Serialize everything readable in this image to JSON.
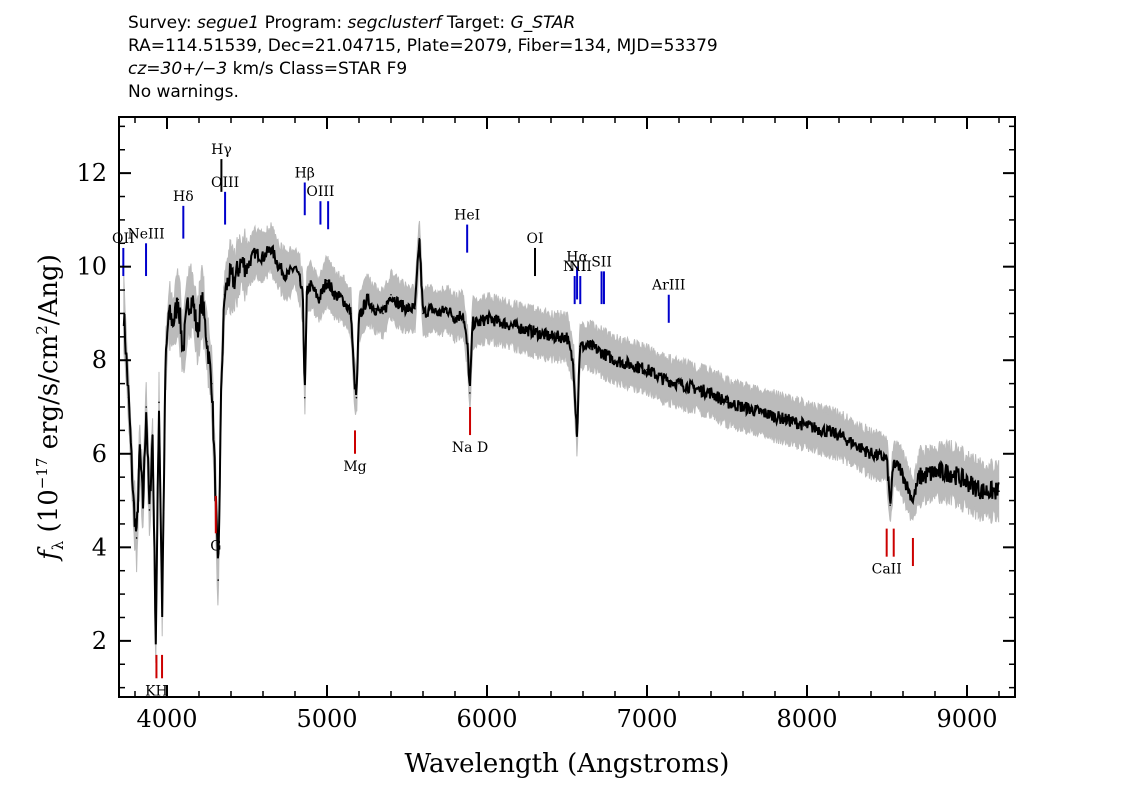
{
  "header": {
    "line1": {
      "survey_label": "Survey:",
      "survey": "segue1",
      "program_label": "Program:",
      "program": "segclusterf",
      "target_label": "Target:",
      "target": "G_STAR"
    },
    "line2": "RA=114.51539, Dec=21.04715, Plate=2079, Fiber=134, MJD=53379",
    "line3": {
      "cz": "cz=30+/−3",
      "rest": "km/s Class=STAR F9"
    },
    "line4": "No warnings."
  },
  "chart_data": {
    "type": "line",
    "xlabel": "Wavelength (Angstroms)",
    "ylabel": "fλ (10⁻¹⁷ erg/s/cm²/Ang)",
    "xlim": [
      3700,
      9300
    ],
    "ylim": [
      0.8,
      13.2
    ],
    "x_ticks": [
      4000,
      5000,
      6000,
      7000,
      8000,
      9000
    ],
    "y_ticks": [
      2,
      4,
      6,
      8,
      10,
      12
    ],
    "series": [
      {
        "role": "flux",
        "color": "#000000",
        "x": [
          3730,
          3760,
          3790,
          3810,
          3830,
          3850,
          3870,
          3890,
          3910,
          3930,
          3950,
          3970,
          3990,
          4010,
          4040,
          4070,
          4100,
          4130,
          4160,
          4190,
          4220,
          4250,
          4280,
          4300,
          4320,
          4340,
          4360,
          4390,
          4420,
          4460,
          4500,
          4550,
          4600,
          4650,
          4700,
          4750,
          4800,
          4830,
          4850,
          4861,
          4875,
          4900,
          4950,
          5000,
          5050,
          5100,
          5150,
          5170,
          5184,
          5200,
          5250,
          5300,
          5350,
          5400,
          5450,
          5500,
          5550,
          5577,
          5600,
          5650,
          5700,
          5750,
          5800,
          5850,
          5880,
          5893,
          5910,
          5950,
          6000,
          6100,
          6200,
          6300,
          6400,
          6500,
          6540,
          6563,
          6580,
          6650,
          6700,
          6800,
          6900,
          7000,
          7100,
          7200,
          7300,
          7400,
          7500,
          7600,
          7700,
          7800,
          7900,
          8000,
          8100,
          8200,
          8300,
          8400,
          8498,
          8520,
          8542,
          8580,
          8662,
          8700,
          8800,
          8900,
          9000,
          9100,
          9200
        ],
        "y": [
          9.0,
          7.2,
          5.0,
          4.2,
          6.1,
          4.9,
          7.0,
          4.8,
          6.4,
          2.0,
          7.1,
          2.6,
          7.8,
          9.0,
          8.8,
          9.3,
          8.2,
          9.2,
          9.3,
          8.6,
          9.3,
          8.4,
          7.5,
          5.5,
          3.3,
          7.6,
          9.4,
          9.8,
          9.7,
          10.1,
          10.0,
          10.3,
          10.2,
          10.4,
          10.0,
          9.8,
          10.0,
          9.7,
          9.3,
          7.2,
          9.5,
          9.6,
          9.3,
          9.7,
          9.4,
          9.3,
          9.0,
          7.6,
          7.2,
          8.9,
          9.3,
          9.1,
          9.0,
          9.4,
          9.2,
          9.1,
          9.1,
          10.6,
          9.0,
          9.1,
          9.0,
          9.1,
          8.9,
          9.0,
          8.2,
          7.3,
          8.8,
          8.8,
          8.9,
          8.8,
          8.7,
          8.6,
          8.5,
          8.5,
          7.9,
          6.4,
          8.3,
          8.3,
          8.2,
          8.0,
          7.9,
          7.8,
          7.6,
          7.5,
          7.4,
          7.3,
          7.1,
          7.0,
          6.9,
          6.8,
          6.7,
          6.6,
          6.5,
          6.4,
          6.2,
          6.0,
          5.9,
          4.9,
          5.8,
          5.7,
          5.0,
          5.5,
          5.6,
          5.6,
          5.4,
          5.2,
          5.2
        ]
      },
      {
        "role": "error-envelope",
        "color": "#bbbbbb"
      }
    ],
    "line_markers": [
      {
        "label": "OII",
        "x": 3727,
        "color": "#0000cc",
        "side": "top",
        "y1": 10.4,
        "y2": 9.8
      },
      {
        "label": "NeIII",
        "x": 3869,
        "color": "#0000cc",
        "side": "top",
        "y1": 10.5,
        "y2": 9.8
      },
      {
        "label": "Hδ",
        "x": 4102,
        "color": "#0000cc",
        "side": "top",
        "y1": 11.3,
        "y2": 10.6
      },
      {
        "label": "Hγ",
        "x": 4340,
        "color": "#000000",
        "side": "top",
        "y1": 12.3,
        "y2": 11.6
      },
      {
        "label": "OIII",
        "x": 4363,
        "color": "#0000cc",
        "side": "top",
        "y1": 11.6,
        "y2": 10.9
      },
      {
        "label": "Hβ",
        "x": 4861,
        "color": "#0000cc",
        "side": "top",
        "y1": 11.8,
        "y2": 11.1
      },
      {
        "label": "OIII",
        "x": 4959,
        "color": "#0000cc",
        "side": "top",
        "y1": 11.4,
        "y2": 10.9
      },
      {
        "label": "",
        "x": 5007,
        "color": "#0000cc",
        "side": "top",
        "y1": 11.4,
        "y2": 10.8
      },
      {
        "label": "HeI",
        "x": 5876,
        "color": "#0000cc",
        "side": "top",
        "y1": 10.9,
        "y2": 10.3
      },
      {
        "label": "OI",
        "x": 6300,
        "color": "#000000",
        "side": "top",
        "y1": 10.4,
        "y2": 9.8
      },
      {
        "label": "NII",
        "x": 6548,
        "color": "#0000cc",
        "side": "top",
        "y1": 9.8,
        "y2": 9.2
      },
      {
        "label": "Hα",
        "x": 6563,
        "color": "#0000cc",
        "side": "top",
        "y1": 10.0,
        "y2": 9.3
      },
      {
        "label": "NII",
        "x": 6583,
        "color": "#0000cc",
        "side": "top",
        "y1": 9.8,
        "y2": 9.2
      },
      {
        "label": "SII",
        "x": 6716,
        "color": "#0000cc",
        "side": "top",
        "y1": 9.9,
        "y2": 9.2
      },
      {
        "label": "",
        "x": 6731,
        "color": "#0000cc",
        "side": "top",
        "y1": 9.9,
        "y2": 9.2
      },
      {
        "label": "ArIII",
        "x": 7136,
        "color": "#0000cc",
        "side": "top",
        "y1": 9.4,
        "y2": 8.8
      },
      {
        "label": "KH",
        "x": 3934,
        "color": "#cc0000",
        "side": "bottom",
        "y1": 1.7,
        "y2": 1.2
      },
      {
        "label": "",
        "x": 3969,
        "color": "#cc0000",
        "side": "bottom",
        "y1": 1.7,
        "y2": 1.2
      },
      {
        "label": "G",
        "x": 4305,
        "color": "#cc0000",
        "side": "bottom",
        "y1": 5.1,
        "y2": 4.3
      },
      {
        "label": "Mg",
        "x": 5175,
        "color": "#cc0000",
        "side": "bottom",
        "y1": 6.5,
        "y2": 6.0
      },
      {
        "label": "Na D",
        "x": 5894,
        "color": "#cc0000",
        "side": "bottom",
        "y1": 7.0,
        "y2": 6.4
      },
      {
        "label": "CaII",
        "x": 8498,
        "color": "#cc0000",
        "side": "bottom",
        "y1": 4.4,
        "y2": 3.8
      },
      {
        "label": "",
        "x": 8542,
        "color": "#cc0000",
        "side": "bottom",
        "y1": 4.4,
        "y2": 3.8
      },
      {
        "label": "",
        "x": 8662,
        "color": "#cc0000",
        "side": "bottom",
        "y1": 4.2,
        "y2": 3.6
      }
    ]
  }
}
